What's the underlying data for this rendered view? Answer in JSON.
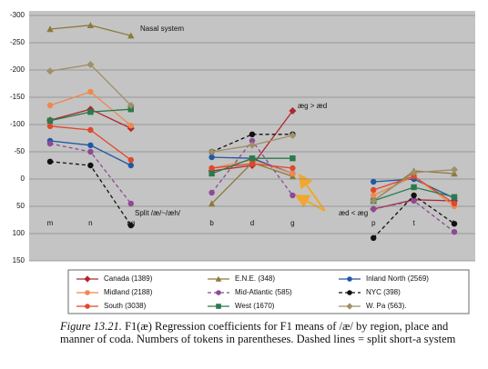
{
  "chart_data": {
    "type": "line",
    "categories": [
      "m",
      "n",
      "ng",
      null,
      "b",
      "d",
      "g",
      null,
      "p",
      "t",
      "k"
    ],
    "ylim": [
      150,
      -300
    ],
    "yticks": [
      -300,
      -250,
      -200,
      -150,
      -100,
      -50,
      0,
      50,
      100,
      150
    ],
    "grid": true,
    "series": [
      {
        "name": "Canada (1389)",
        "color": "#b0282c",
        "marker": "diamond",
        "dashed": false,
        "values": [
          -108,
          -128,
          -93,
          null,
          -15,
          -25,
          -125,
          null,
          55,
          38,
          40
        ]
      },
      {
        "name": "E.N.E. (348)",
        "color": "#8c7a3c",
        "marker": "triangle",
        "dashed": false,
        "values": [
          -275,
          -282,
          -263,
          null,
          45,
          -30,
          -5,
          null,
          40,
          -15,
          -10
        ]
      },
      {
        "name": "Inland North (2569)",
        "color": "#1f58a4",
        "marker": "circle",
        "dashed": false,
        "values": [
          -70,
          -62,
          -25,
          null,
          -40,
          -38,
          -10,
          null,
          5,
          0,
          35
        ]
      },
      {
        "name": "Midland (2188)",
        "color": "#f0884c",
        "marker": "circle",
        "dashed": false,
        "values": [
          -135,
          -160,
          -98,
          null,
          -20,
          -35,
          -10,
          null,
          30,
          -5,
          50
        ]
      },
      {
        "name": "Mid-Atlantic (585)",
        "color": "#8e4a96",
        "marker": "circle",
        "dashed": true,
        "values": [
          -65,
          -50,
          45,
          null,
          25,
          -70,
          30,
          null,
          55,
          40,
          97
        ]
      },
      {
        "name": "NYC (398)",
        "color": "#111111",
        "marker": "circle",
        "dashed": true,
        "values": [
          -32,
          -25,
          85,
          null,
          -50,
          -82,
          -82,
          null,
          108,
          30,
          82
        ]
      },
      {
        "name": "South (3038)",
        "color": "#e0482c",
        "marker": "circle",
        "dashed": false,
        "values": [
          -97,
          -90,
          -35,
          null,
          -20,
          -28,
          -20,
          null,
          20,
          -5,
          45
        ]
      },
      {
        "name": "West (1670)",
        "color": "#2a7a4c",
        "marker": "square",
        "dashed": false,
        "values": [
          -107,
          -123,
          -128,
          null,
          -10,
          -38,
          -38,
          null,
          40,
          15,
          33
        ]
      },
      {
        "name": "W. Pa (563).",
        "color": "#a09068",
        "marker": "diamond",
        "dashed": false,
        "values": [
          -198,
          -210,
          -135,
          null,
          -50,
          -62,
          -80,
          null,
          40,
          -12,
          -17
        ]
      }
    ],
    "annotations": [
      "Nasal system",
      "æg > æd",
      "Split /æ/~/æh/",
      "æd < æg"
    ],
    "caption_label": "Figure 13.21.",
    "caption": "F1(æ) Regression coefficients for F1 means of /æ/ by region, place and manner of coda. Numbers of tokens in parentheses. Dashed lines = split short-a system"
  }
}
